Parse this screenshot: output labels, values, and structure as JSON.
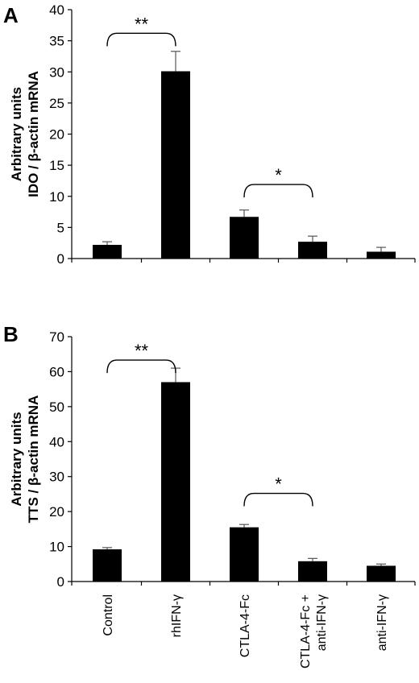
{
  "chart_data": [
    {
      "panel_label": "A",
      "type": "bar",
      "categories": [
        "Control",
        "rhIFN-γ",
        "CTLA-4-Fc",
        "CTLA-4-Fc + anti-IFN-γ",
        "anti-IFN-γ"
      ],
      "values": [
        2.2,
        30.1,
        6.7,
        2.7,
        1.1
      ],
      "errors": [
        0.5,
        3.2,
        1.1,
        0.9,
        0.7
      ],
      "ylabel": [
        "Arbitrary units",
        "IDO / β-actin mRNA"
      ],
      "ylim": [
        0,
        40
      ],
      "yticks": [
        0,
        5,
        10,
        15,
        20,
        25,
        30,
        35,
        40
      ],
      "grid": false,
      "bar_color": "#000000",
      "significance": [
        {
          "from": 0,
          "to": 1,
          "label": "**",
          "y": 36.2
        },
        {
          "from": 2,
          "to": 3,
          "label": "*",
          "y": 11.9
        }
      ]
    },
    {
      "panel_label": "B",
      "type": "bar",
      "categories": [
        "Control",
        "rhIFN-γ",
        "CTLA-4-Fc",
        "CTLA-4-Fc + anti-IFN-γ",
        "anti-IFN-γ"
      ],
      "values": [
        9.2,
        57.0,
        15.5,
        5.8,
        4.5
      ],
      "errors": [
        0.5,
        4.0,
        0.8,
        0.8,
        0.5
      ],
      "ylabel": [
        "Arbitrary units",
        "TTS / β-actin mRNA"
      ],
      "ylim": [
        0,
        70
      ],
      "yticks": [
        0,
        10,
        20,
        30,
        40,
        50,
        60,
        70
      ],
      "grid": false,
      "bar_color": "#000000",
      "significance": [
        {
          "from": 0,
          "to": 1,
          "label": "**",
          "y": 63.3
        },
        {
          "from": 2,
          "to": 3,
          "label": "*",
          "y": 25.2
        }
      ]
    }
  ],
  "x_tick_labels": [
    [
      "Control"
    ],
    [
      "rhIFN-γ"
    ],
    [
      "CTLA-4-Fc"
    ],
    [
      "CTLA-4-Fc +",
      "anti-IFN-γ"
    ],
    [
      "anti-IFN-γ"
    ]
  ]
}
